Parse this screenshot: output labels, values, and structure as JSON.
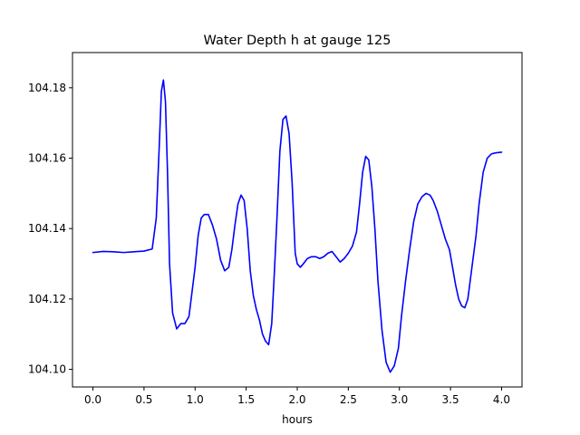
{
  "chart_data": {
    "type": "line",
    "title": "Water Depth h at gauge 125",
    "xlabel": "hours",
    "ylabel": "",
    "xlim": [
      -0.2,
      4.2
    ],
    "ylim": [
      104.095,
      104.19
    ],
    "xticks": [
      0.0,
      0.5,
      1.0,
      1.5,
      2.0,
      2.5,
      3.0,
      3.5,
      4.0
    ],
    "xtick_labels": [
      "0.0",
      "0.5",
      "1.0",
      "1.5",
      "2.0",
      "2.5",
      "3.0",
      "3.5",
      "4.0"
    ],
    "yticks": [
      104.1,
      104.12,
      104.14,
      104.16,
      104.18
    ],
    "ytick_labels": [
      "104.10",
      "104.12",
      "104.14",
      "104.16",
      "104.18"
    ],
    "grid": false,
    "series": [
      {
        "color": "#0000ff",
        "x": [
          0.0,
          0.1,
          0.2,
          0.3,
          0.4,
          0.5,
          0.58,
          0.62,
          0.65,
          0.67,
          0.69,
          0.71,
          0.73,
          0.75,
          0.78,
          0.82,
          0.86,
          0.9,
          0.94,
          0.97,
          1.0,
          1.03,
          1.06,
          1.09,
          1.13,
          1.17,
          1.21,
          1.25,
          1.29,
          1.33,
          1.36,
          1.39,
          1.42,
          1.45,
          1.48,
          1.51,
          1.54,
          1.57,
          1.6,
          1.63,
          1.66,
          1.69,
          1.72,
          1.75,
          1.77,
          1.8,
          1.83,
          1.86,
          1.89,
          1.92,
          1.95,
          1.98,
          2.0,
          2.03,
          2.06,
          2.1,
          2.14,
          2.18,
          2.22,
          2.26,
          2.3,
          2.34,
          2.38,
          2.42,
          2.46,
          2.5,
          2.54,
          2.58,
          2.61,
          2.64,
          2.67,
          2.7,
          2.73,
          2.76,
          2.79,
          2.83,
          2.87,
          2.91,
          2.95,
          2.99,
          3.02,
          3.06,
          3.1,
          3.14,
          3.18,
          3.22,
          3.26,
          3.3,
          3.33,
          3.37,
          3.41,
          3.45,
          3.49,
          3.52,
          3.55,
          3.58,
          3.61,
          3.64,
          3.67,
          3.71,
          3.75,
          3.78,
          3.82,
          3.86,
          3.9,
          3.94,
          3.97,
          4.0
        ],
        "y": [
          104.1332,
          104.1335,
          104.1334,
          104.1332,
          104.1334,
          104.1336,
          104.1342,
          104.143,
          104.164,
          104.179,
          104.1822,
          104.176,
          104.156,
          104.13,
          104.116,
          104.1115,
          104.113,
          104.113,
          104.115,
          104.122,
          104.129,
          104.138,
          104.143,
          104.144,
          104.144,
          104.141,
          104.137,
          104.131,
          104.128,
          104.129,
          104.134,
          104.141,
          104.147,
          104.1495,
          104.148,
          104.14,
          104.128,
          104.121,
          104.117,
          104.114,
          104.11,
          104.108,
          104.107,
          104.113,
          104.124,
          104.142,
          104.162,
          104.171,
          104.172,
          104.167,
          104.153,
          104.133,
          104.13,
          104.129,
          104.13,
          104.1315,
          104.132,
          104.132,
          104.1315,
          104.132,
          104.133,
          104.1335,
          104.132,
          104.1305,
          104.1315,
          104.133,
          104.135,
          104.139,
          104.147,
          104.156,
          104.1605,
          104.1595,
          104.152,
          104.14,
          104.125,
          104.111,
          104.102,
          104.0992,
          104.101,
          104.106,
          104.115,
          104.125,
          104.134,
          104.142,
          104.147,
          104.149,
          104.15,
          104.1495,
          104.148,
          104.145,
          104.141,
          104.137,
          104.134,
          104.129,
          104.124,
          104.12,
          104.118,
          104.1175,
          104.12,
          104.129,
          104.138,
          104.147,
          104.156,
          104.16,
          104.1612,
          104.1615,
          104.1616,
          104.1617
        ]
      }
    ]
  }
}
